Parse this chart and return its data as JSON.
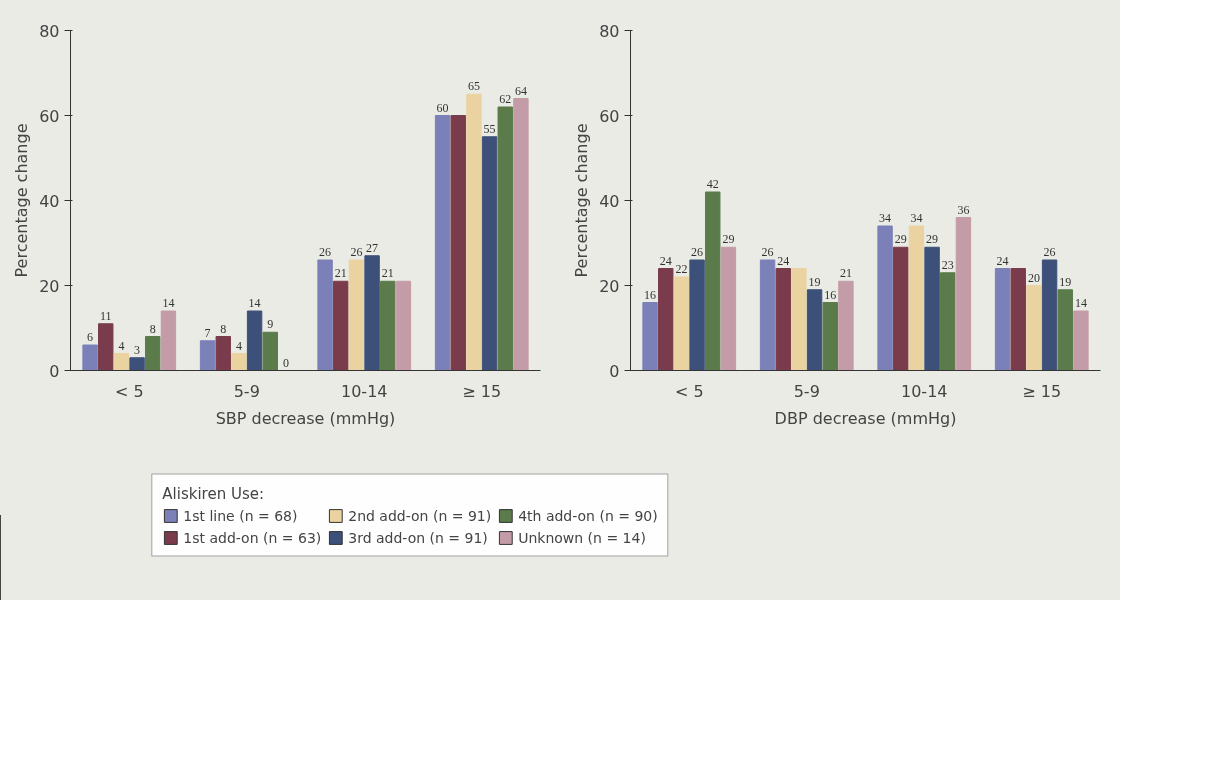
{
  "chart_data": [
    {
      "type": "bar",
      "xlabel": "SBP decrease (mmHg)",
      "ylabel": "Percentage change",
      "categories": [
        "< 5",
        "5-9",
        "10-14",
        "≥ 15"
      ],
      "ylim": [
        0,
        80
      ],
      "yticks": [
        0,
        20,
        40,
        60,
        80
      ],
      "grid": false,
      "legend": "bottom",
      "legend_title": "Aliskiren Use:",
      "series": [
        {
          "name": "1st line (n = 68)",
          "color": "#7b80b8",
          "values": [
            6,
            7,
            26,
            60
          ],
          "value_labels": [
            "6",
            "7",
            "26",
            "60"
          ]
        },
        {
          "name": "1st add-on (n = 63)",
          "color": "#7a3c4c",
          "values": [
            11,
            8,
            21,
            60
          ],
          "value_labels": [
            "11",
            "8",
            "21",
            null
          ]
        },
        {
          "name": "2nd add-on (n = 91)",
          "color": "#ead3a0",
          "values": [
            4,
            4,
            26,
            65
          ],
          "value_labels": [
            "4",
            "4",
            "26",
            "65"
          ]
        },
        {
          "name": "3rd add-on (n = 91)",
          "color": "#3c5079",
          "values": [
            3,
            14,
            27,
            55
          ],
          "value_labels": [
            "3",
            "14",
            "27",
            "55"
          ]
        },
        {
          "name": "4th add-on (n = 90)",
          "color": "#5b7b4b",
          "values": [
            8,
            9,
            21,
            62
          ],
          "value_labels": [
            "8",
            "9",
            "21",
            "62"
          ]
        },
        {
          "name": "Unknown (n = 14)",
          "color": "#c49ca8",
          "values": [
            14,
            0,
            21,
            64
          ],
          "value_labels": [
            "14",
            "0",
            null,
            "64"
          ]
        }
      ]
    },
    {
      "type": "bar",
      "xlabel": "DBP decrease (mmHg)",
      "ylabel": "Percentage change",
      "categories": [
        "< 5",
        "5-9",
        "10-14",
        "≥ 15"
      ],
      "ylim": [
        0,
        80
      ],
      "yticks": [
        0,
        20,
        40,
        60,
        80
      ],
      "grid": false,
      "series": [
        {
          "color": "#7b80b8",
          "values": [
            16,
            26,
            34,
            24
          ],
          "value_labels": [
            "16",
            "26",
            "34",
            "24"
          ]
        },
        {
          "color": "#7a3c4c",
          "values": [
            24,
            24,
            29,
            24
          ],
          "value_labels": [
            "24",
            "24",
            "29",
            null
          ]
        },
        {
          "color": "#ead3a0",
          "values": [
            22,
            24,
            34,
            20
          ],
          "value_labels": [
            "22",
            null,
            "34",
            "20"
          ]
        },
        {
          "color": "#3c5079",
          "values": [
            26,
            19,
            29,
            26
          ],
          "value_labels": [
            "26",
            "19",
            "29",
            "26"
          ]
        },
        {
          "color": "#5b7b4b",
          "values": [
            42,
            16,
            23,
            19
          ],
          "value_labels": [
            "42",
            "16",
            "23",
            "19"
          ]
        },
        {
          "color": "#c49ca8",
          "values": [
            29,
            21,
            36,
            14
          ],
          "value_labels": [
            "29",
            "21",
            "36",
            "14"
          ]
        }
      ]
    }
  ]
}
